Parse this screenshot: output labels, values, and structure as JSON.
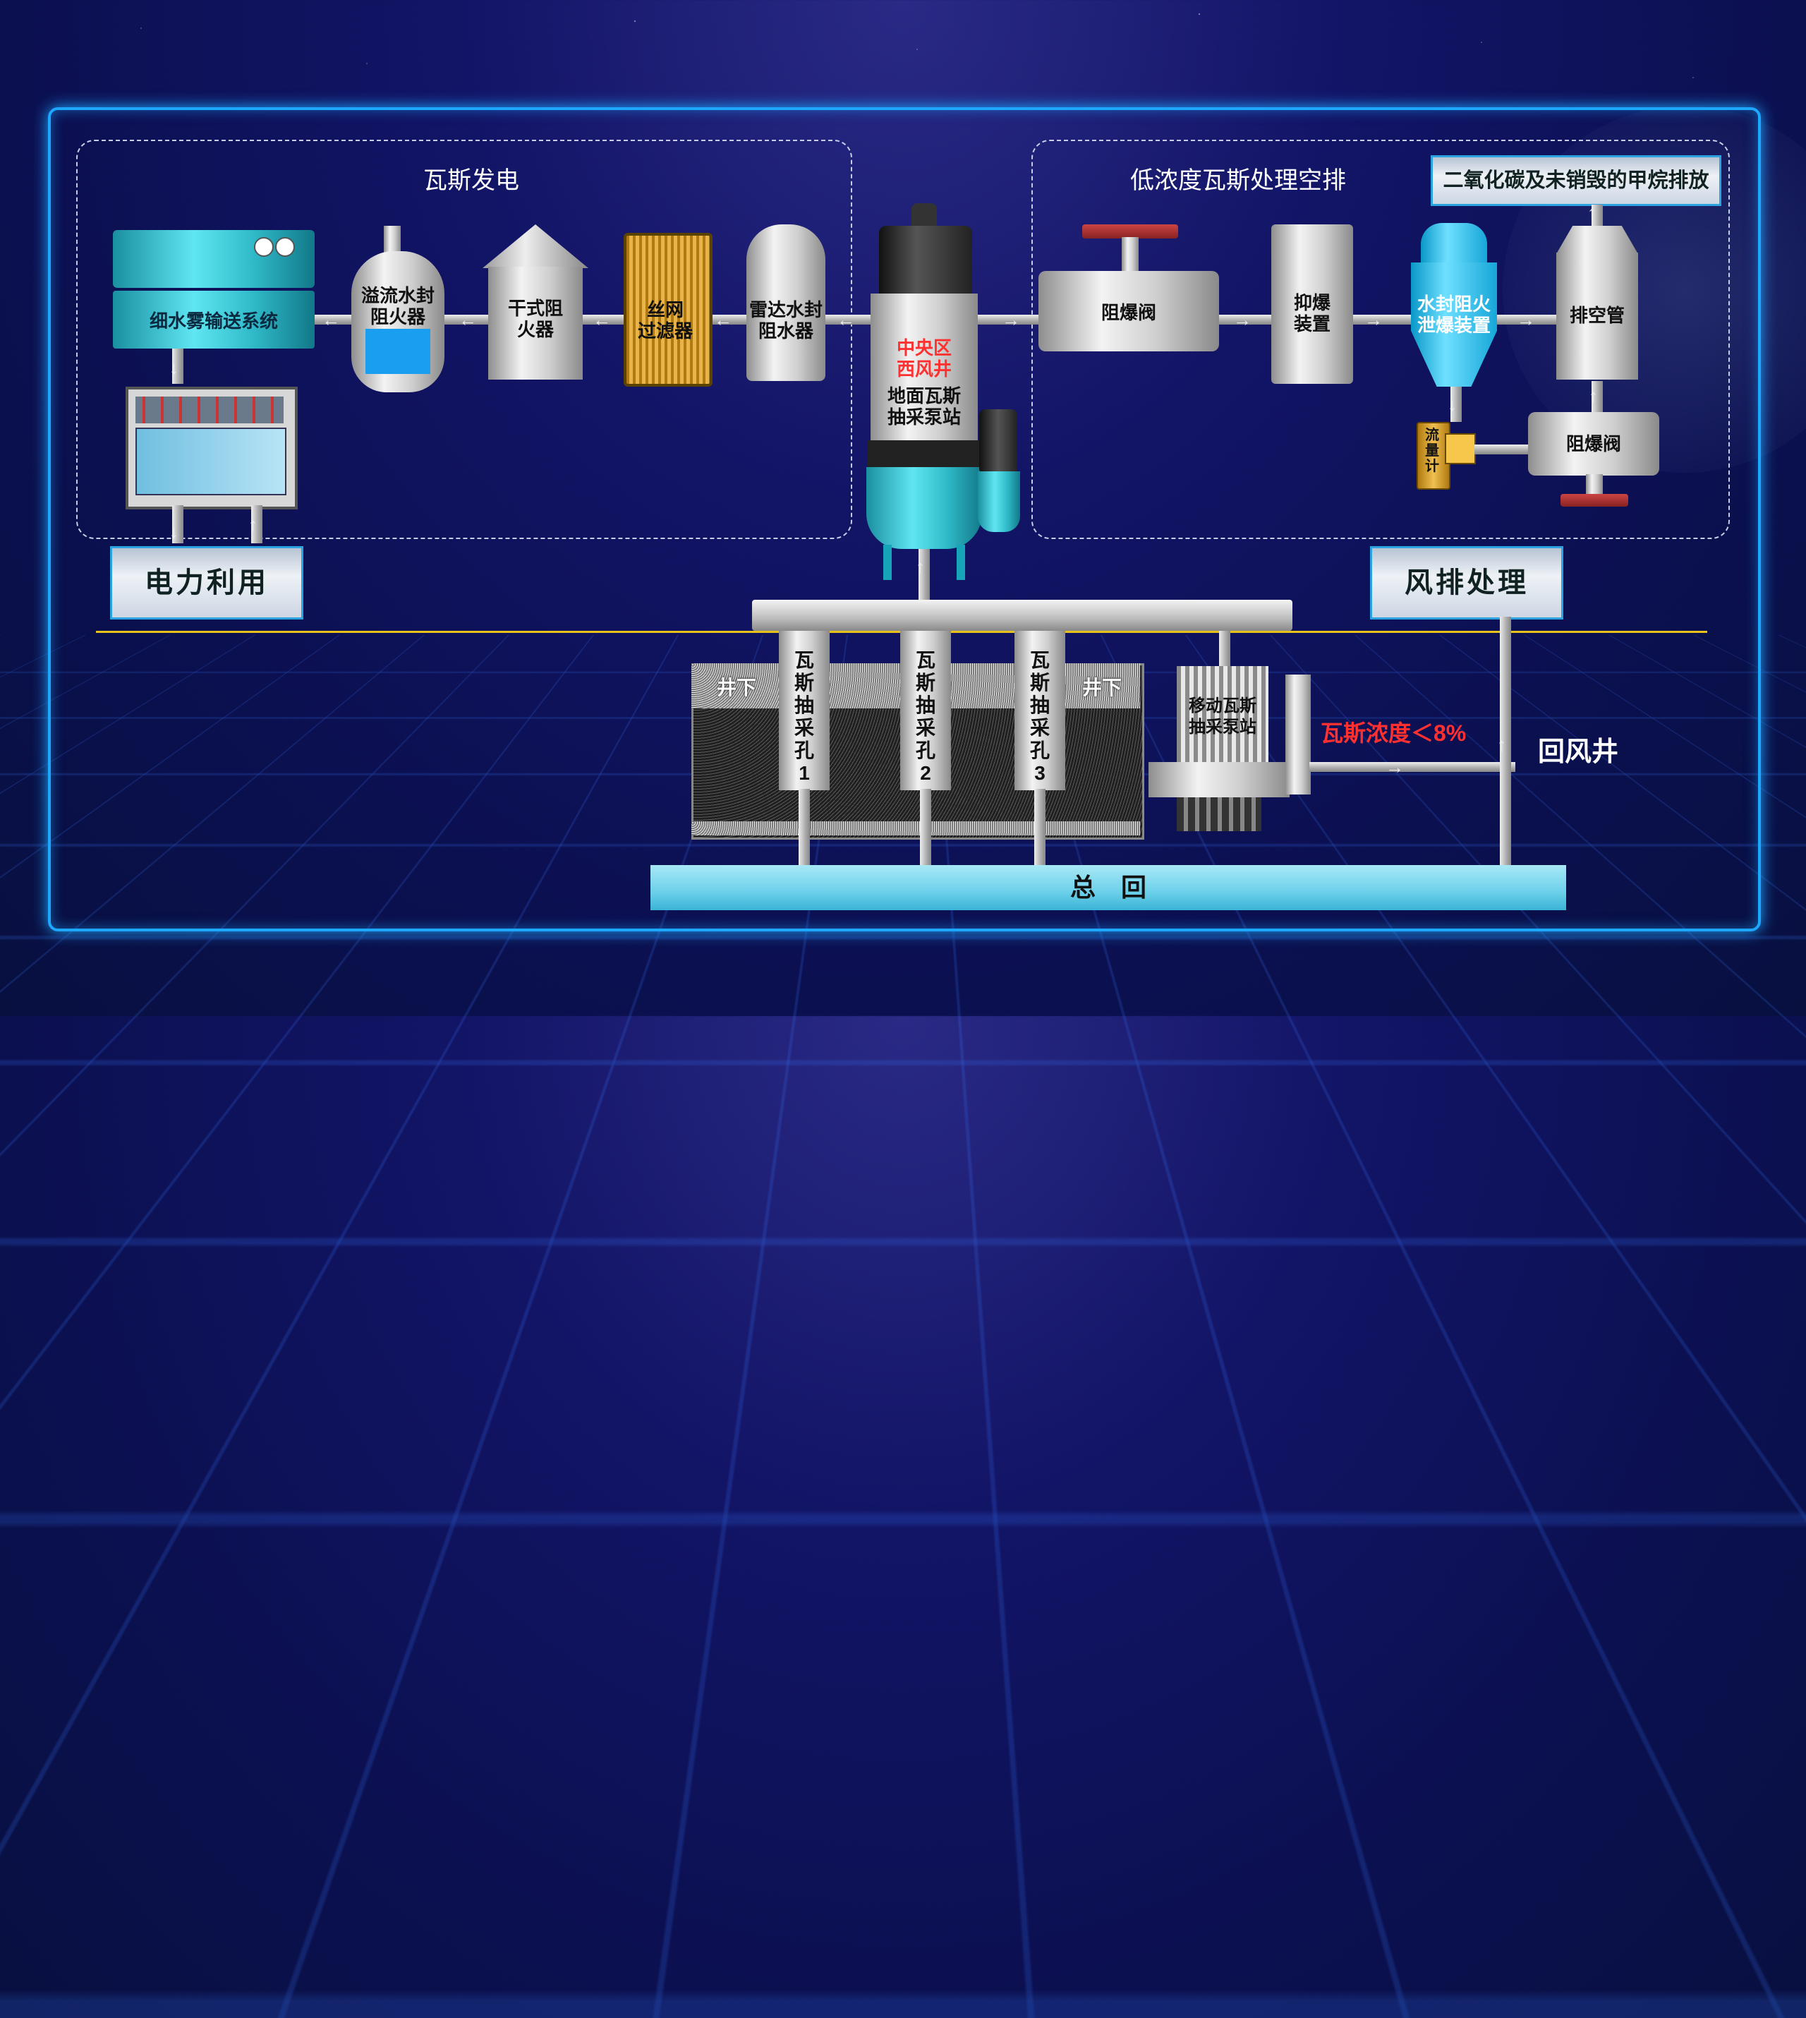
{
  "zones": {
    "gas_power": "瓦斯发电",
    "low_conc": "低浓度瓦斯处理空排"
  },
  "emission_label": "二氧化碳及未销毁的甲烷排放",
  "equipment": {
    "mist_system": "细水雾输送系统",
    "overflow_arrester": [
      "溢流水封",
      "阻火器"
    ],
    "dry_arrester": [
      "干式阻",
      "火器"
    ],
    "mesh_filter": [
      "丝网",
      "过滤器"
    ],
    "radar_arrester": [
      "雷达水封",
      "阻水器"
    ],
    "pump_station_red": [
      "中央区",
      "西风井"
    ],
    "pump_station_white": [
      "地面瓦斯",
      "抽采泵站"
    ],
    "explosion_valve_1": "阻爆阀",
    "suppressor": [
      "抑爆",
      "装置"
    ],
    "water_seal": [
      "水封阻火",
      "泄爆装置"
    ],
    "vent_pipe": "排空管",
    "flow_meter": [
      "流",
      "量",
      "计"
    ],
    "explosion_valve_2": "阻爆阀",
    "mobile_pump": [
      "移动瓦斯",
      "抽采泵站"
    ]
  },
  "boxes": {
    "power_use": "电力利用",
    "wind_treatment": "风排处理",
    "main_return": "总　回"
  },
  "underground": {
    "left": "井下",
    "right": "井下",
    "holes": [
      {
        "label": [
          "瓦",
          "斯",
          "抽",
          "采",
          "孔",
          "1"
        ]
      },
      {
        "label": [
          "瓦",
          "斯",
          "抽",
          "采",
          "孔",
          "2"
        ]
      },
      {
        "label": [
          "瓦",
          "斯",
          "抽",
          "采",
          "孔",
          "3"
        ]
      }
    ]
  },
  "concentration_note": "瓦斯浓度＜8%",
  "return_shaft": "回风井",
  "colors": {
    "frame": "#1ea7ff",
    "red_text": "#ff3030",
    "divider": "#e8c21a"
  }
}
